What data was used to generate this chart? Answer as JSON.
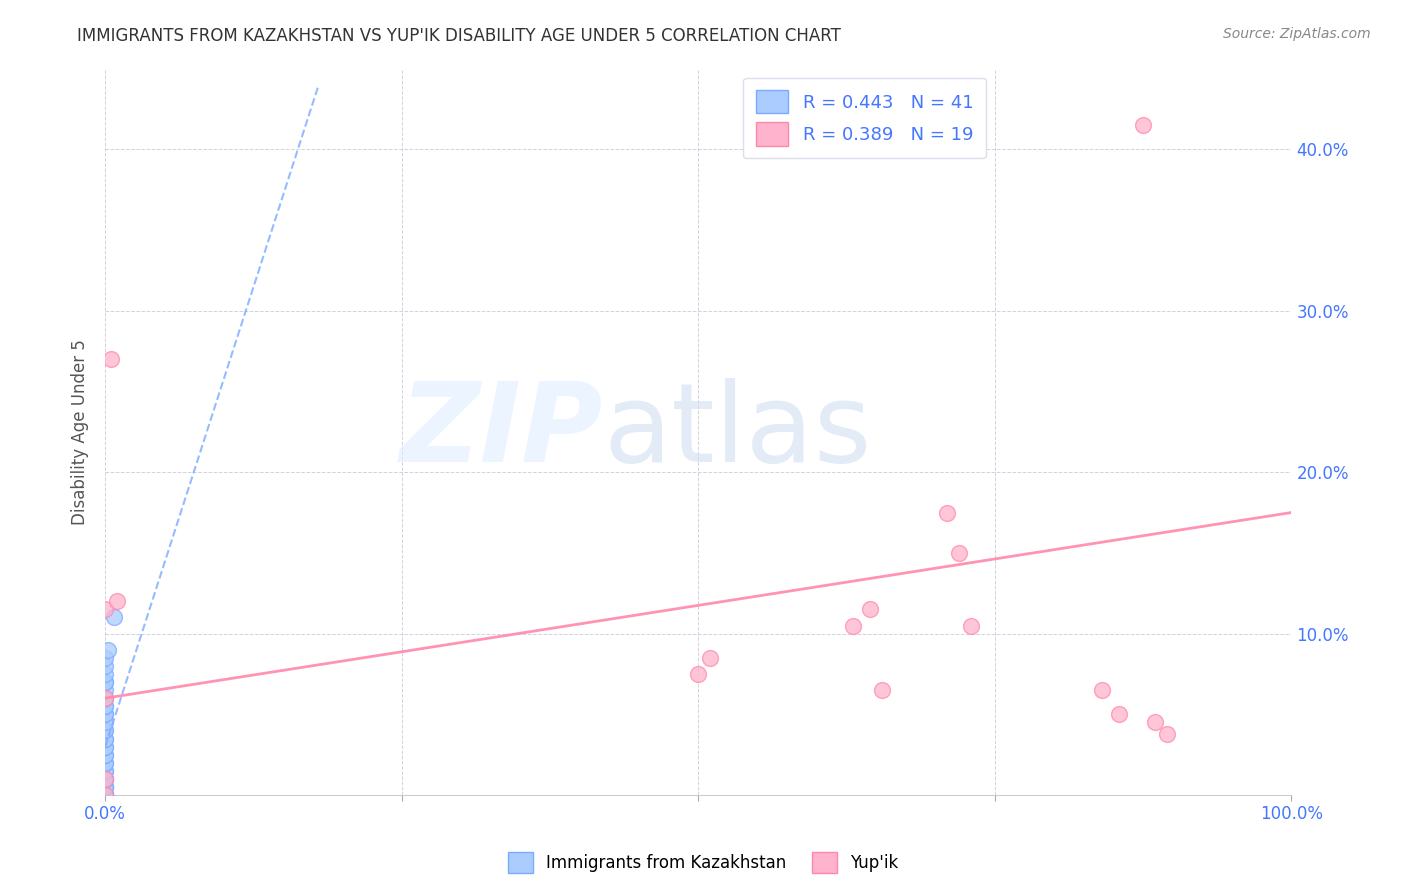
{
  "title": "IMMIGRANTS FROM KAZAKHSTAN VS YUP'IK DISABILITY AGE UNDER 5 CORRELATION CHART",
  "source": "Source: ZipAtlas.com",
  "ylabel": "Disability Age Under 5",
  "blue_color": "#7AABFF",
  "blue_face": "#AACCFF",
  "pink_color": "#FF88AA",
  "pink_face": "#FFB3CC",
  "axis_label_color": "#4477FF",
  "title_color": "#333333",
  "grid_color": "#CCCCDD",
  "blue_scatter_x": [
    0.0,
    0.0,
    0.0,
    0.0,
    0.0,
    0.0,
    0.0,
    0.0,
    0.0,
    0.0,
    0.0,
    0.0,
    0.0,
    0.0,
    0.0,
    0.0,
    0.0,
    0.0,
    0.0,
    0.0,
    0.0,
    0.0,
    0.0,
    0.0,
    0.0,
    0.0,
    0.0,
    0.0,
    0.0,
    0.0,
    0.0,
    0.0,
    0.0,
    0.0,
    0.0,
    0.0,
    0.0,
    0.0,
    0.0,
    0.002,
    0.007
  ],
  "blue_scatter_y": [
    0.0,
    0.0,
    0.0,
    0.0,
    0.0,
    0.0,
    0.0,
    0.0,
    0.005,
    0.005,
    0.005,
    0.01,
    0.01,
    0.01,
    0.015,
    0.015,
    0.02,
    0.02,
    0.025,
    0.025,
    0.03,
    0.03,
    0.035,
    0.035,
    0.04,
    0.04,
    0.045,
    0.05,
    0.05,
    0.055,
    0.055,
    0.06,
    0.06,
    0.065,
    0.07,
    0.07,
    0.075,
    0.08,
    0.085,
    0.09,
    0.11
  ],
  "pink_scatter_x": [
    0.0,
    0.0,
    0.0,
    0.0,
    0.005,
    0.01,
    0.5,
    0.51,
    0.63,
    0.645,
    0.655,
    0.71,
    0.72,
    0.73,
    0.84,
    0.855,
    0.875,
    0.885,
    0.895
  ],
  "pink_scatter_y": [
    0.0,
    0.01,
    0.06,
    0.115,
    0.27,
    0.12,
    0.075,
    0.085,
    0.105,
    0.115,
    0.065,
    0.175,
    0.15,
    0.105,
    0.065,
    0.05,
    0.415,
    0.045,
    0.038
  ],
  "blue_trend_x": [
    0.0,
    0.18
  ],
  "blue_trend_y": [
    0.03,
    0.44
  ],
  "pink_trend_x": [
    0.0,
    1.0
  ],
  "pink_trend_y": [
    0.06,
    0.175
  ],
  "xlim": [
    0.0,
    1.0
  ],
  "ylim": [
    0.0,
    0.45
  ],
  "xticks": [
    0.0,
    0.25,
    0.5,
    0.75,
    1.0
  ],
  "xtick_labels_show": [
    "0.0%",
    "",
    "",
    "",
    "100.0%"
  ],
  "yticks_right": [
    0.0,
    0.1,
    0.2,
    0.3,
    0.4
  ],
  "ytick_labels_right": [
    "",
    "10.0%",
    "20.0%",
    "30.0%",
    "40.0%"
  ],
  "figsize": [
    14.06,
    8.92
  ],
  "dpi": 100
}
